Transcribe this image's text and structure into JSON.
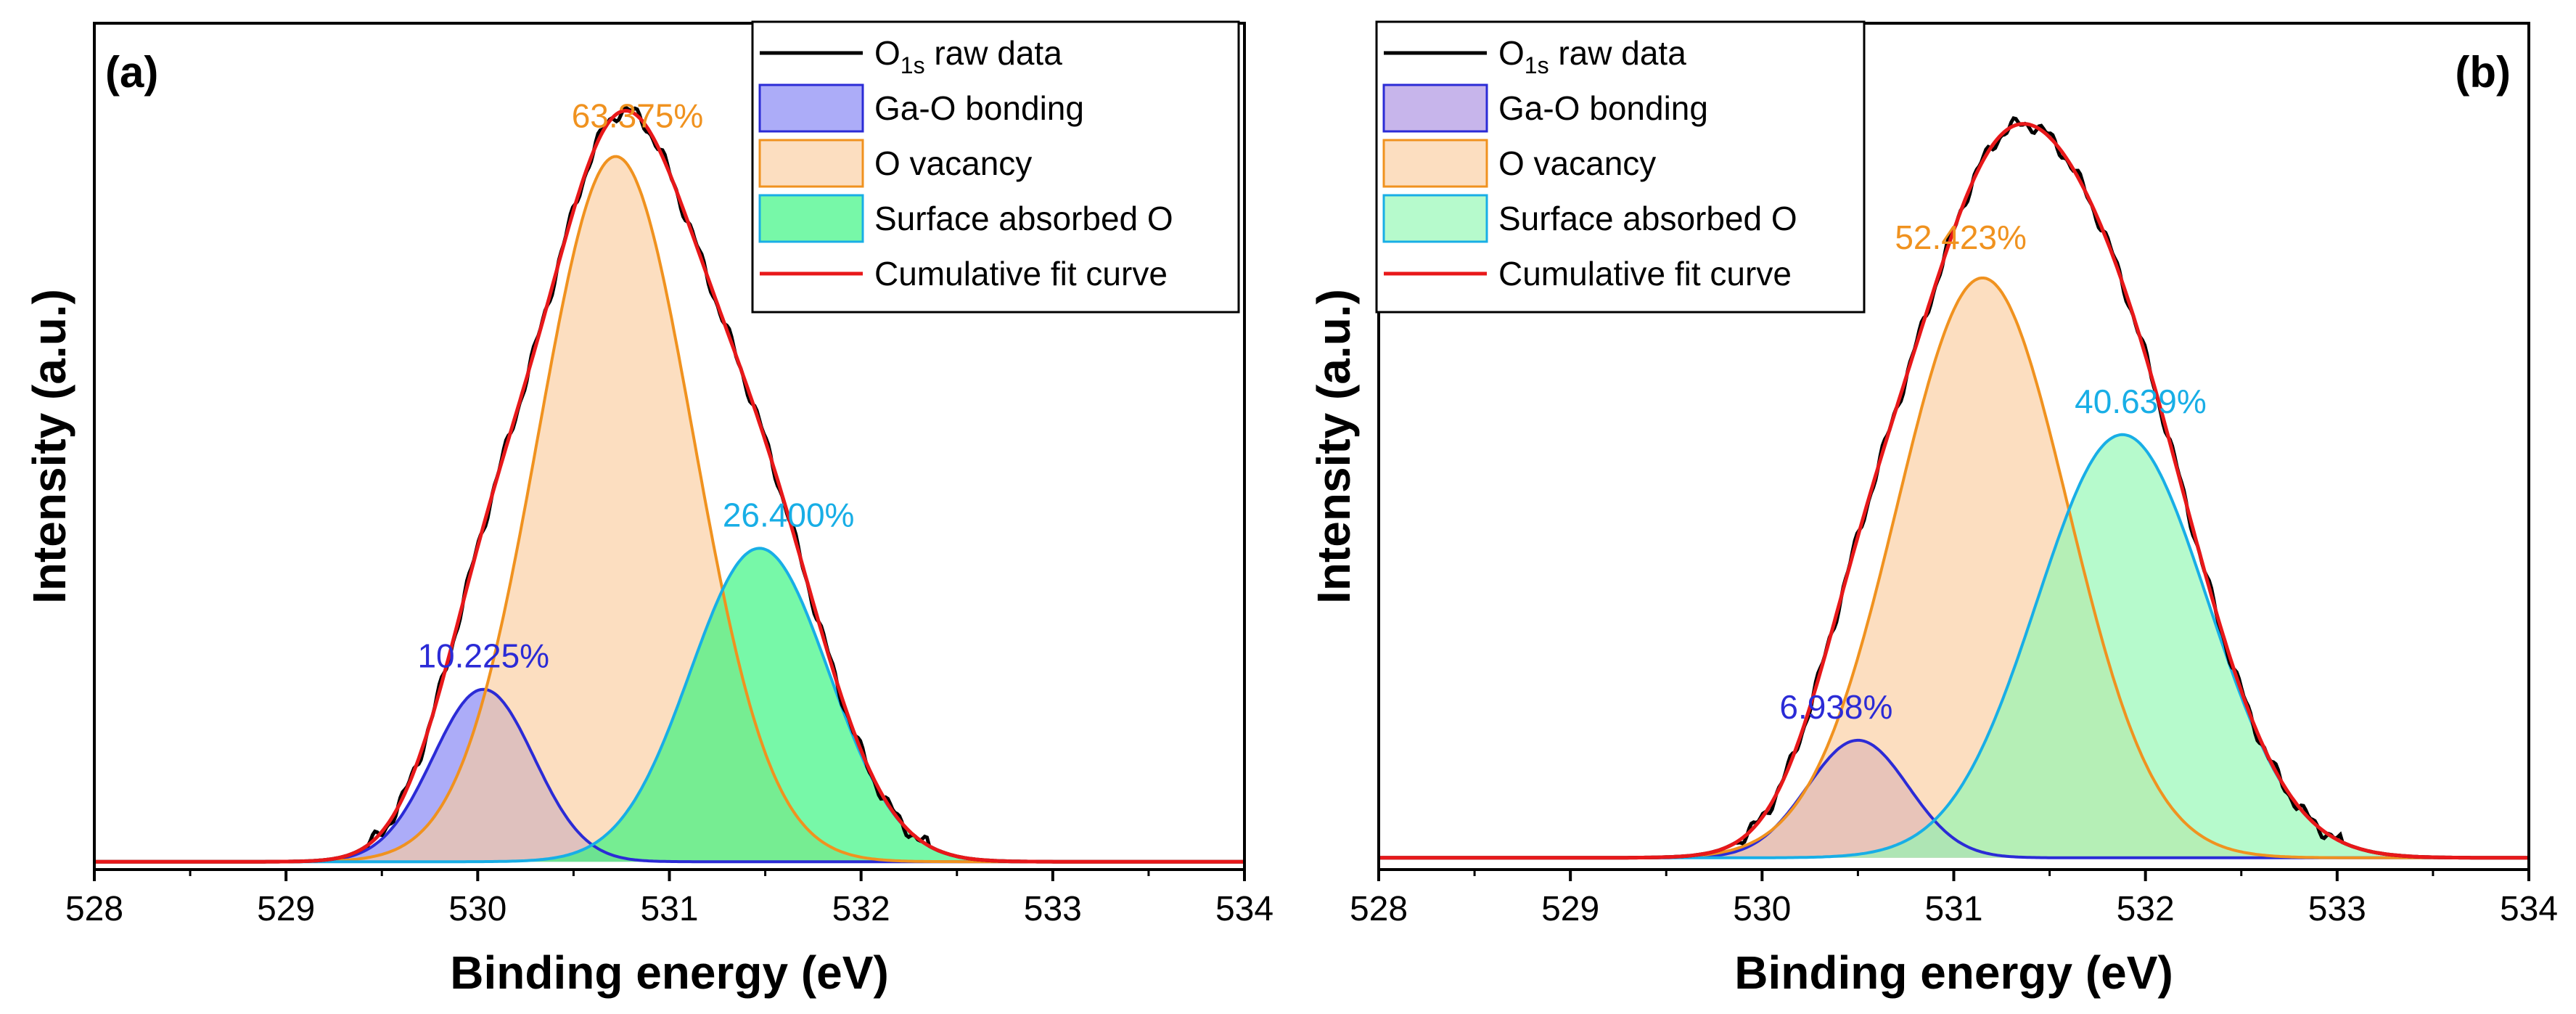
{
  "chart_data": [
    {
      "type": "area",
      "panel_label": "(a)",
      "xlabel": "Binding energy (eV)",
      "ylabel": "Intensity (a.u.)",
      "xlim": [
        528,
        534
      ],
      "ylim": [
        0,
        1.08
      ],
      "xticks": [
        "528",
        "529",
        "530",
        "531",
        "532",
        "533",
        "534"
      ],
      "yticks_visible": false,
      "legend_position": "top-right",
      "baseline": 0.01,
      "series": [
        {
          "name": "Ga-O bonding",
          "kind": "peak",
          "center": 530.03,
          "amplitude": 0.22,
          "fwhm": 0.62,
          "fill": "#7f7ff5",
          "stroke": "#2b2bd6",
          "area_label": "10.225%",
          "label_color": "#2b2bd6"
        },
        {
          "name": "O vacancy",
          "kind": "peak",
          "center": 530.72,
          "amplitude": 0.9,
          "fwhm": 0.95,
          "fill": "#fbcd9e",
          "stroke": "#f0921f",
          "area_label": "63.375%",
          "label_color": "#f0921f"
        },
        {
          "name": "Surface absorbed O",
          "kind": "peak",
          "center": 531.47,
          "amplitude": 0.4,
          "fwhm": 0.85,
          "fill": "#2ef47a",
          "stroke": "#18aee6",
          "area_label": "26.400%",
          "label_color": "#18aee6"
        },
        {
          "name": "Cumulative fit curve",
          "kind": "sum",
          "stroke": "#e8181a"
        },
        {
          "name": "O1s raw data",
          "kind": "raw",
          "stroke": "#000000"
        }
      ]
    },
    {
      "type": "area",
      "panel_label": "(b)",
      "xlabel": "Binding energy (eV)",
      "ylabel": "Intensity (a.u.)",
      "xlim": [
        528,
        534
      ],
      "ylim": [
        0,
        1.08
      ],
      "xticks": [
        "528",
        "529",
        "530",
        "531",
        "532",
        "533",
        "534"
      ],
      "yticks_visible": false,
      "legend_position": "top-left",
      "baseline": 0.015,
      "series": [
        {
          "name": "Ga-O bonding",
          "kind": "peak",
          "center": 530.5,
          "amplitude": 0.15,
          "fwhm": 0.62,
          "fill": "#a98ee0",
          "stroke": "#2b2bd6",
          "area_label": "6.938%",
          "label_color": "#2b2bd6"
        },
        {
          "name": "O vacancy",
          "kind": "peak",
          "center": 531.15,
          "amplitude": 0.74,
          "fwhm": 1.05,
          "fill": "#fbcd9e",
          "stroke": "#f0921f",
          "area_label": "52.423%",
          "label_color": "#f0921f"
        },
        {
          "name": "Surface absorbed O",
          "kind": "peak",
          "center": 531.88,
          "amplitude": 0.54,
          "fwhm": 1.05,
          "fill": "#8ff7b0",
          "stroke": "#18aee6",
          "area_label": "40.639%",
          "label_color": "#18aee6"
        },
        {
          "name": "Cumulative fit curve",
          "kind": "sum",
          "stroke": "#e8181a"
        },
        {
          "name": "O1s raw data",
          "kind": "raw",
          "stroke": "#000000"
        }
      ]
    }
  ],
  "legend": {
    "raw_main": "O",
    "raw_sub": "1s",
    "raw_rest": " raw data",
    "entries": [
      "Ga-O bonding",
      "O vacancy",
      "Surface absorbed O",
      "Cumulative fit curve"
    ]
  }
}
